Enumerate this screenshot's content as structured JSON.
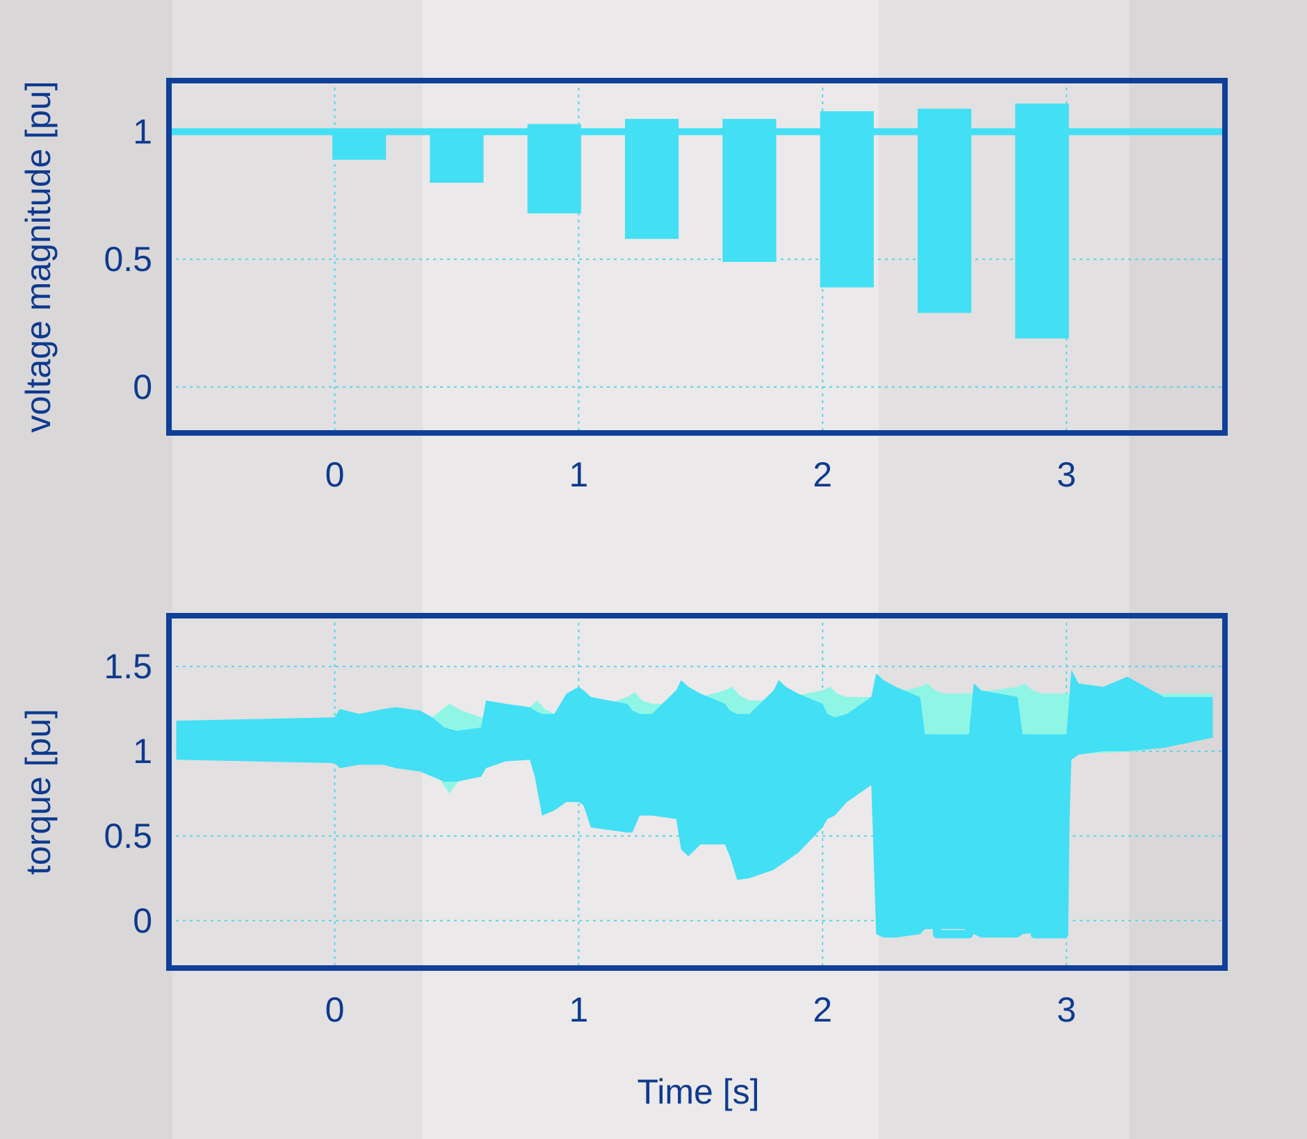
{
  "theme": {
    "frame_color": "#0f3f98",
    "grid_color": "#56d8e6",
    "bar_color": "#43dff5",
    "band_color": "#8ff6e6",
    "text_color": "#0e3a8e",
    "background_bands": [
      "#d9d7d8",
      "#e2e0e1",
      "#ebe9ea",
      "#e2e0e1",
      "#d9d7d8"
    ]
  },
  "chart_data": [
    {
      "id": "voltage",
      "type": "bar",
      "subtype": "floating-bar",
      "xlabel": "",
      "ylabel": "voltage magnitude [pu]",
      "xlim": [
        -0.68,
        3.65
      ],
      "ylim": [
        -0.18,
        1.2
      ],
      "x_ticks": [
        "0",
        "1",
        "2",
        "3"
      ],
      "x_tick_values": [
        0,
        1,
        2,
        3
      ],
      "y_ticks": [
        "0",
        "0.5",
        "1"
      ],
      "y_tick_values": [
        0,
        0.5,
        1
      ],
      "grid": true,
      "reference_line": {
        "y": 1.0
      },
      "bar_width": 0.22,
      "bars": [
        {
          "x": 0.1,
          "low": 0.89,
          "high": 1.01
        },
        {
          "x": 0.5,
          "low": 0.8,
          "high": 1.01
        },
        {
          "x": 0.9,
          "low": 0.68,
          "high": 1.03
        },
        {
          "x": 1.3,
          "low": 0.58,
          "high": 1.05
        },
        {
          "x": 1.7,
          "low": 0.49,
          "high": 1.05
        },
        {
          "x": 2.1,
          "low": 0.39,
          "high": 1.08
        },
        {
          "x": 2.5,
          "low": 0.29,
          "high": 1.09
        },
        {
          "x": 2.9,
          "low": 0.19,
          "high": 1.11
        }
      ]
    },
    {
      "id": "torque",
      "type": "area",
      "subtype": "envelope-bands",
      "xlabel": "Time [s]",
      "ylabel": "torque [pu]",
      "xlim": [
        -0.68,
        3.65
      ],
      "ylim": [
        -0.28,
        1.8
      ],
      "x_ticks": [
        "0",
        "1",
        "2",
        "3"
      ],
      "x_tick_values": [
        0,
        1,
        2,
        3
      ],
      "y_ticks": [
        "0",
        "0.5",
        "1",
        "1.5"
      ],
      "y_tick_values": [
        0,
        0.5,
        1,
        1.5
      ],
      "grid": true,
      "series": [
        {
          "role": "light-band",
          "x": [
            0.4,
            0.47,
            0.52,
            0.6,
            0.8,
            0.83,
            0.86,
            0.9,
            1.0,
            1.2,
            1.23,
            1.26,
            1.3,
            1.4,
            1.6,
            1.63,
            1.66,
            1.7,
            1.8,
            2.0,
            2.03,
            2.06,
            2.1,
            2.2,
            2.4,
            2.43,
            2.46,
            2.5,
            2.6,
            2.8,
            2.83,
            2.86,
            2.9,
            3.0,
            3.3,
            3.6
          ],
          "upper": [
            1.2,
            1.28,
            1.24,
            1.2,
            1.26,
            1.3,
            1.25,
            1.22,
            1.22,
            1.32,
            1.35,
            1.3,
            1.28,
            1.28,
            1.36,
            1.38,
            1.33,
            1.3,
            1.3,
            1.36,
            1.38,
            1.34,
            1.32,
            1.32,
            1.38,
            1.4,
            1.36,
            1.34,
            1.34,
            1.38,
            1.4,
            1.36,
            1.34,
            1.34,
            1.34,
            1.34
          ],
          "lower": [
            0.9,
            0.75,
            0.85,
            0.92,
            0.98,
            0.95,
            1.0,
            1.02,
            0.98,
            0.88,
            0.92,
            0.98,
            1.02,
            0.98,
            0.8,
            0.86,
            0.94,
            0.98,
            0.94,
            0.66,
            0.76,
            0.86,
            0.92,
            0.88,
            0.48,
            0.45,
            0.6,
            0.78,
            0.85,
            0.4,
            0.36,
            0.5,
            0.75,
            0.98,
            1.0,
            1.1
          ]
        },
        {
          "role": "main-band",
          "x": [
            -0.65,
            0.0,
            0.02,
            0.1,
            0.2,
            0.25,
            0.35,
            0.4,
            0.45,
            0.5,
            0.6,
            0.62,
            0.7,
            0.8,
            0.82,
            0.85,
            0.9,
            0.95,
            1.0,
            1.02,
            1.05,
            1.2,
            1.22,
            1.25,
            1.3,
            1.4,
            1.42,
            1.45,
            1.5,
            1.6,
            1.62,
            1.65,
            1.7,
            1.8,
            1.82,
            1.85,
            1.9,
            2.0,
            2.02,
            2.05,
            2.1,
            2.2,
            2.22,
            2.25,
            2.3,
            2.4,
            2.42,
            2.6,
            2.62,
            2.65,
            2.8,
            2.82,
            3.0,
            3.02,
            3.05,
            3.15,
            3.25,
            3.4,
            3.6
          ],
          "upper": [
            1.18,
            1.2,
            1.25,
            1.22,
            1.25,
            1.26,
            1.24,
            1.2,
            1.14,
            1.12,
            1.14,
            1.3,
            1.28,
            1.26,
            1.24,
            1.22,
            1.22,
            1.34,
            1.38,
            1.36,
            1.32,
            1.28,
            1.24,
            1.22,
            1.22,
            1.36,
            1.42,
            1.38,
            1.34,
            1.28,
            1.24,
            1.22,
            1.22,
            1.36,
            1.42,
            1.38,
            1.34,
            1.28,
            1.22,
            1.2,
            1.22,
            1.32,
            1.46,
            1.42,
            1.38,
            1.32,
            1.1,
            1.1,
            1.4,
            1.36,
            1.32,
            1.1,
            1.1,
            1.48,
            1.4,
            1.38,
            1.44,
            1.32,
            1.32
          ],
          "lower": [
            0.95,
            0.93,
            0.9,
            0.92,
            0.92,
            0.9,
            0.88,
            0.85,
            0.82,
            0.82,
            0.85,
            0.9,
            0.94,
            0.95,
            0.85,
            0.62,
            0.65,
            0.7,
            0.7,
            0.68,
            0.55,
            0.52,
            0.52,
            0.62,
            0.62,
            0.6,
            0.42,
            0.38,
            0.45,
            0.45,
            0.38,
            0.24,
            0.25,
            0.3,
            0.32,
            0.35,
            0.4,
            0.55,
            0.6,
            0.62,
            0.7,
            0.8,
            -0.08,
            -0.1,
            -0.1,
            -0.08,
            -0.05,
            -0.05,
            -0.08,
            -0.1,
            -0.1,
            -0.08,
            -0.05,
            0.95,
            0.98,
            1.0,
            1.0,
            1.02,
            1.08
          ],
          "outline_dip": [
            {
              "x": [
                2.42,
                2.47,
                2.6,
                2.62
              ],
              "y": [
                1.1,
                -0.08,
                -0.08,
                1.1
              ]
            },
            {
              "x": [
                2.82,
                2.87,
                2.99,
                3.0
              ],
              "y": [
                1.1,
                -0.08,
                -0.08,
                1.1
              ]
            }
          ]
        }
      ]
    }
  ]
}
